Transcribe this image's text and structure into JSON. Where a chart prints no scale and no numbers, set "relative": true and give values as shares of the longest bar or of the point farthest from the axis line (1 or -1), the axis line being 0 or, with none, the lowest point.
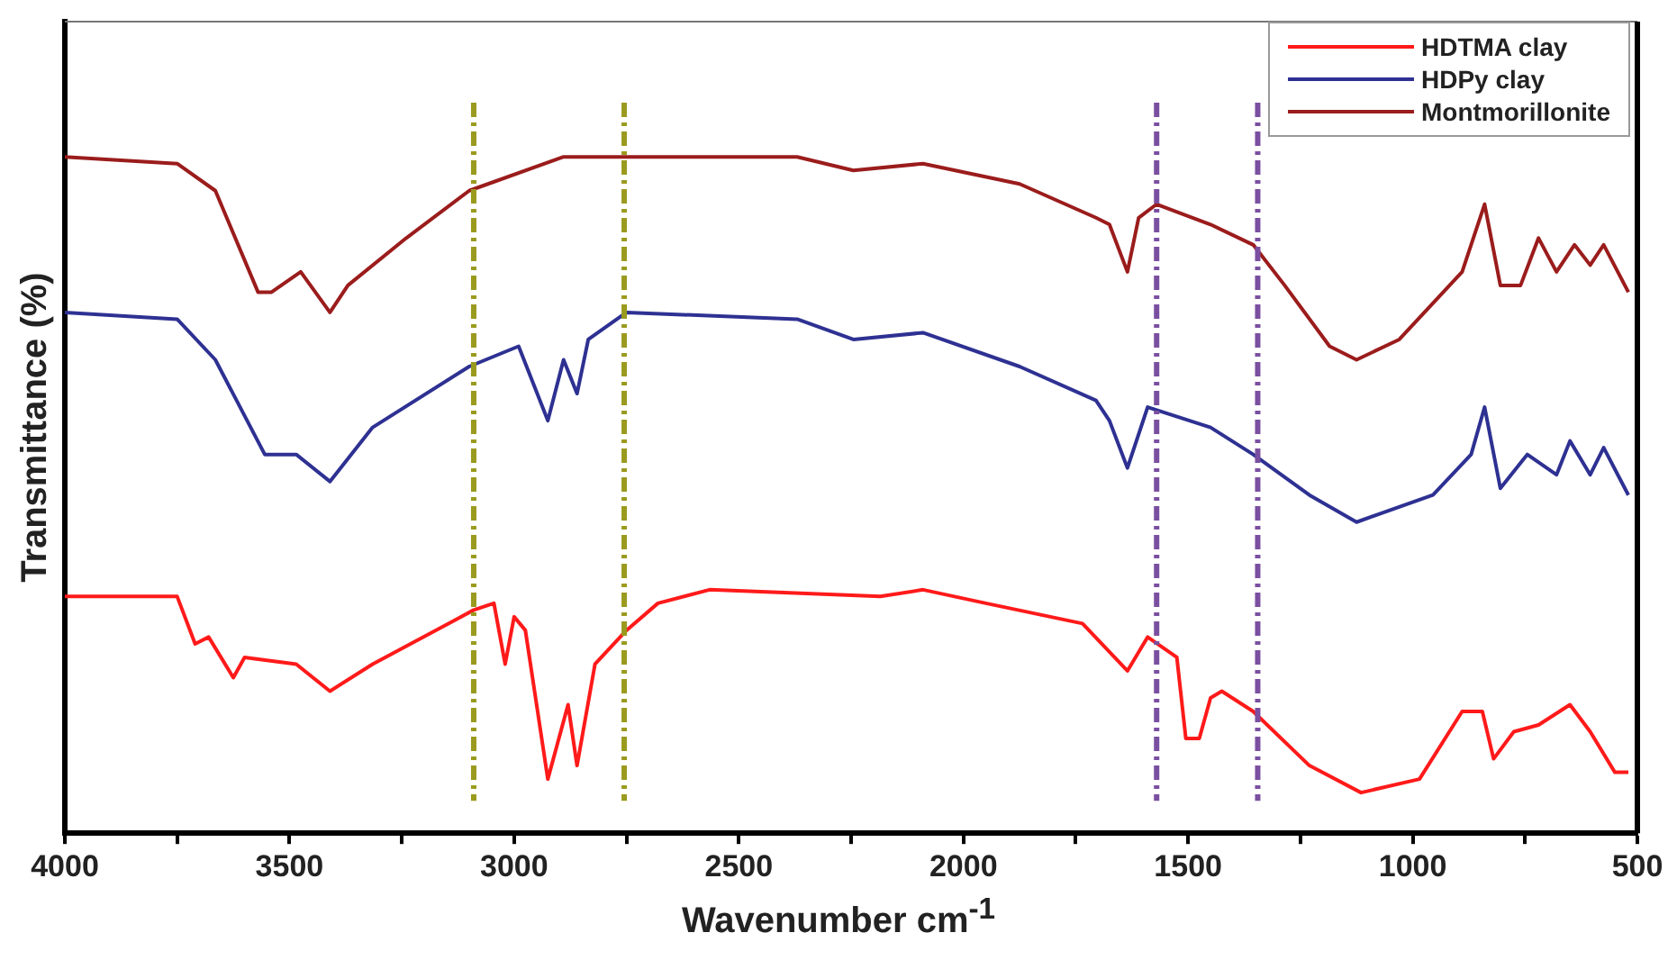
{
  "chart_data": {
    "type": "line",
    "xlabel": "Wavenumber cm$^{-1}$",
    "ylabel": "Transmittance (%)",
    "relative": true,
    "xlim": [
      4000,
      500
    ],
    "xticks": [
      4000,
      {
        "value": 3750,
        "label": null
      },
      3500,
      {
        "value": 3250,
        "label": null
      },
      3000,
      {
        "value": 2750,
        "label": null
      },
      2500,
      {
        "value": 2250,
        "label": null
      },
      2000,
      {
        "value": 1750,
        "label": null
      },
      1500,
      {
        "value": 1250,
        "label": null
      },
      1000,
      {
        "value": 750,
        "label": null
      },
      500
    ],
    "tick_labels": "x",
    "legend": "top right",
    "marker": "none",
    "line_style": "solid",
    "grid": false,
    "series": [
      {
        "name": "HDTMA clay",
        "color": "#ff1a1a",
        "x": [
          4000,
          3750,
          3710,
          3680,
          3625,
          3600,
          3485,
          3410,
          3315,
          3090,
          3045,
          3020,
          3000,
          2975,
          2925,
          2880,
          2860,
          2820,
          2750,
          2680,
          2565,
          2185,
          2090,
          1950,
          1735,
          1635,
          1590,
          1525,
          1505,
          1475,
          1450,
          1425,
          1355,
          1230,
          1115,
          985,
          890,
          845,
          820,
          775,
          720,
          650,
          605,
          550,
          520
        ],
        "values": [
          0.35,
          0.35,
          0.28,
          0.29,
          0.23,
          0.26,
          0.25,
          0.21,
          0.25,
          0.33,
          0.34,
          0.25,
          0.32,
          0.3,
          0.08,
          0.19,
          0.1,
          0.25,
          0.3,
          0.34,
          0.36,
          0.35,
          0.36,
          0.34,
          0.31,
          0.24,
          0.29,
          0.26,
          0.14,
          0.14,
          0.2,
          0.21,
          0.18,
          0.1,
          0.06,
          0.08,
          0.18,
          0.18,
          0.11,
          0.15,
          0.16,
          0.19,
          0.15,
          0.09,
          0.09
        ]
      },
      {
        "name": "HDPy clay",
        "color": "#2e3192",
        "x": [
          4000,
          3750,
          3665,
          3555,
          3485,
          3410,
          3315,
          3100,
          2990,
          2925,
          2890,
          2860,
          2835,
          2750,
          2370,
          2245,
          2090,
          1875,
          1705,
          1675,
          1635,
          1590,
          1450,
          1355,
          1230,
          1125,
          955,
          870,
          840,
          805,
          745,
          680,
          650,
          605,
          575,
          520
        ],
        "values": [
          0.77,
          0.76,
          0.7,
          0.56,
          0.56,
          0.52,
          0.6,
          0.69,
          0.72,
          0.61,
          0.7,
          0.65,
          0.73,
          0.77,
          0.76,
          0.73,
          0.74,
          0.69,
          0.64,
          0.61,
          0.54,
          0.63,
          0.6,
          0.56,
          0.5,
          0.46,
          0.5,
          0.56,
          0.63,
          0.51,
          0.56,
          0.53,
          0.58,
          0.53,
          0.57,
          0.5
        ]
      },
      {
        "name": "Montmorillonite",
        "color": "#9b1c1c",
        "x": [
          4000,
          3750,
          3665,
          3570,
          3540,
          3475,
          3410,
          3370,
          3240,
          3100,
          2890,
          2370,
          2245,
          2090,
          1875,
          1705,
          1675,
          1635,
          1610,
          1570,
          1450,
          1355,
          1285,
          1185,
          1125,
          1030,
          890,
          840,
          805,
          760,
          720,
          680,
          640,
          605,
          575,
          520
        ],
        "values": [
          1.0,
          0.99,
          0.95,
          0.8,
          0.8,
          0.83,
          0.77,
          0.81,
          0.88,
          0.95,
          1.0,
          1.0,
          0.98,
          0.99,
          0.96,
          0.91,
          0.9,
          0.83,
          0.91,
          0.93,
          0.9,
          0.87,
          0.81,
          0.72,
          0.7,
          0.73,
          0.83,
          0.93,
          0.81,
          0.81,
          0.88,
          0.83,
          0.87,
          0.84,
          0.87,
          0.8
        ]
      }
    ],
    "ref_lines": [
      {
        "axis": "x",
        "value": 3090,
        "color": "#9a9a1e",
        "line_style": "dashed"
      },
      {
        "axis": "x",
        "value": 2755,
        "color": "#9a9a1e",
        "line_style": "dashed"
      },
      {
        "axis": "x",
        "value": 1570,
        "color": "#7a4fa0",
        "line_style": "dashed"
      },
      {
        "axis": "x",
        "value": 1345,
        "color": "#7a4fa0",
        "line_style": "dashed"
      }
    ]
  }
}
